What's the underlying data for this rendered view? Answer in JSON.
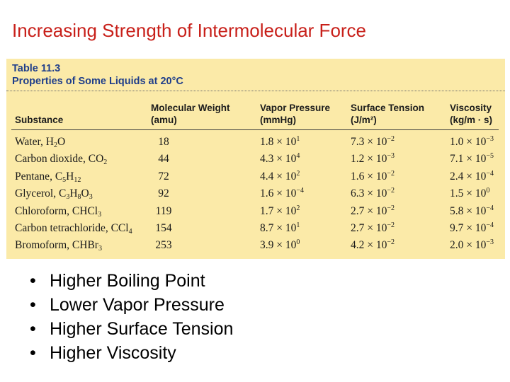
{
  "slide_title": "Increasing Strength of Intermolecular Force",
  "table": {
    "label": "Table 11.3",
    "caption": "Properties of Some Liquids at 20°C",
    "columns": {
      "substance": [
        "Substance"
      ],
      "molecular_weight": [
        "Molecular Weight",
        "(amu)"
      ],
      "vapor_pressure": [
        "Vapor Pressure",
        "(mmHg)"
      ],
      "surface_tension": [
        "Surface Tension",
        "(J/m²)"
      ],
      "viscosity": [
        "Viscosity",
        "(kg/m · s)"
      ]
    },
    "rows": [
      {
        "name": "Water, H",
        "formula_parts": [
          [
            "Water, H",
            ""
          ],
          [
            "2",
            ""
          ],
          [
            "O",
            ""
          ]
        ],
        "mw": "18",
        "vp": [
          "1.8 × 10",
          "1"
        ],
        "st": [
          "7.3 × 10",
          "−2"
        ],
        "vi": [
          "1.0 × 10",
          "−3"
        ]
      },
      {
        "name": "Carbon dioxide",
        "mw": "44",
        "vp": [
          "4.3 × 10",
          "4"
        ],
        "st": [
          "1.2 × 10",
          "−3"
        ],
        "vi": [
          "7.1 × 10",
          "−5"
        ]
      },
      {
        "name": "Pentane",
        "mw": "72",
        "vp": [
          "4.4 × 10",
          "2"
        ],
        "st": [
          "1.6 × 10",
          "−2"
        ],
        "vi": [
          "2.4 × 10",
          "−4"
        ]
      },
      {
        "name": "Glycerol",
        "mw": "92",
        "vp": [
          "1.6 × 10",
          "−4"
        ],
        "st": [
          "6.3 × 10",
          "−2"
        ],
        "vi": [
          "1.5 × 10",
          "0"
        ]
      },
      {
        "name": "Chloroform",
        "mw": "119",
        "vp": [
          "1.7 × 10",
          "2"
        ],
        "st": [
          "2.7 × 10",
          "−2"
        ],
        "vi": [
          "5.8 × 10",
          "−4"
        ]
      },
      {
        "name": "Carbon tetrachloride",
        "mw": "154",
        "vp": [
          "8.7 × 10",
          "1"
        ],
        "st": [
          "2.7 × 10",
          "−2"
        ],
        "vi": [
          "9.7 × 10",
          "−4"
        ]
      },
      {
        "name": "Bromoform",
        "mw": "253",
        "vp": [
          "3.9 × 10",
          "0"
        ],
        "st": [
          "4.2 × 10",
          "−2"
        ],
        "vi": [
          "2.0 × 10",
          "−3"
        ]
      }
    ],
    "substance_labels": [
      [
        [
          "Water, H",
          ""
        ],
        [
          "2",
          "sub"
        ],
        [
          "O",
          ""
        ]
      ],
      [
        [
          "Carbon dioxide, CO",
          ""
        ],
        [
          "2",
          "sub"
        ]
      ],
      [
        [
          "Pentane, C",
          ""
        ],
        [
          "5",
          "sub"
        ],
        [
          "H",
          ""
        ],
        [
          "12",
          "sub"
        ]
      ],
      [
        [
          "Glycerol, C",
          ""
        ],
        [
          "3",
          "sub"
        ],
        [
          "H",
          ""
        ],
        [
          "8",
          "sub"
        ],
        [
          "O",
          ""
        ],
        [
          "3",
          "sub"
        ]
      ],
      [
        [
          "Chloroform, CHCl",
          ""
        ],
        [
          "3",
          "sub"
        ]
      ],
      [
        [
          "Carbon tetrachloride, CCl",
          ""
        ],
        [
          "4",
          "sub"
        ]
      ],
      [
        [
          "Bromoform, CHBr",
          ""
        ],
        [
          "3",
          "sub"
        ]
      ]
    ]
  },
  "bullets": [
    {
      "dot": "•",
      "text": "Higher Boiling Point"
    },
    {
      "dot": "•",
      "text": "Lower Vapor Pressure"
    },
    {
      "dot": "•",
      "text": "Higher Surface Tension"
    },
    {
      "dot": "•",
      "text": "Higher Viscosity"
    }
  ],
  "colors": {
    "title": "#c8201a",
    "table_bg": "#fbeaa8",
    "table_label": "#1f3e8a"
  }
}
